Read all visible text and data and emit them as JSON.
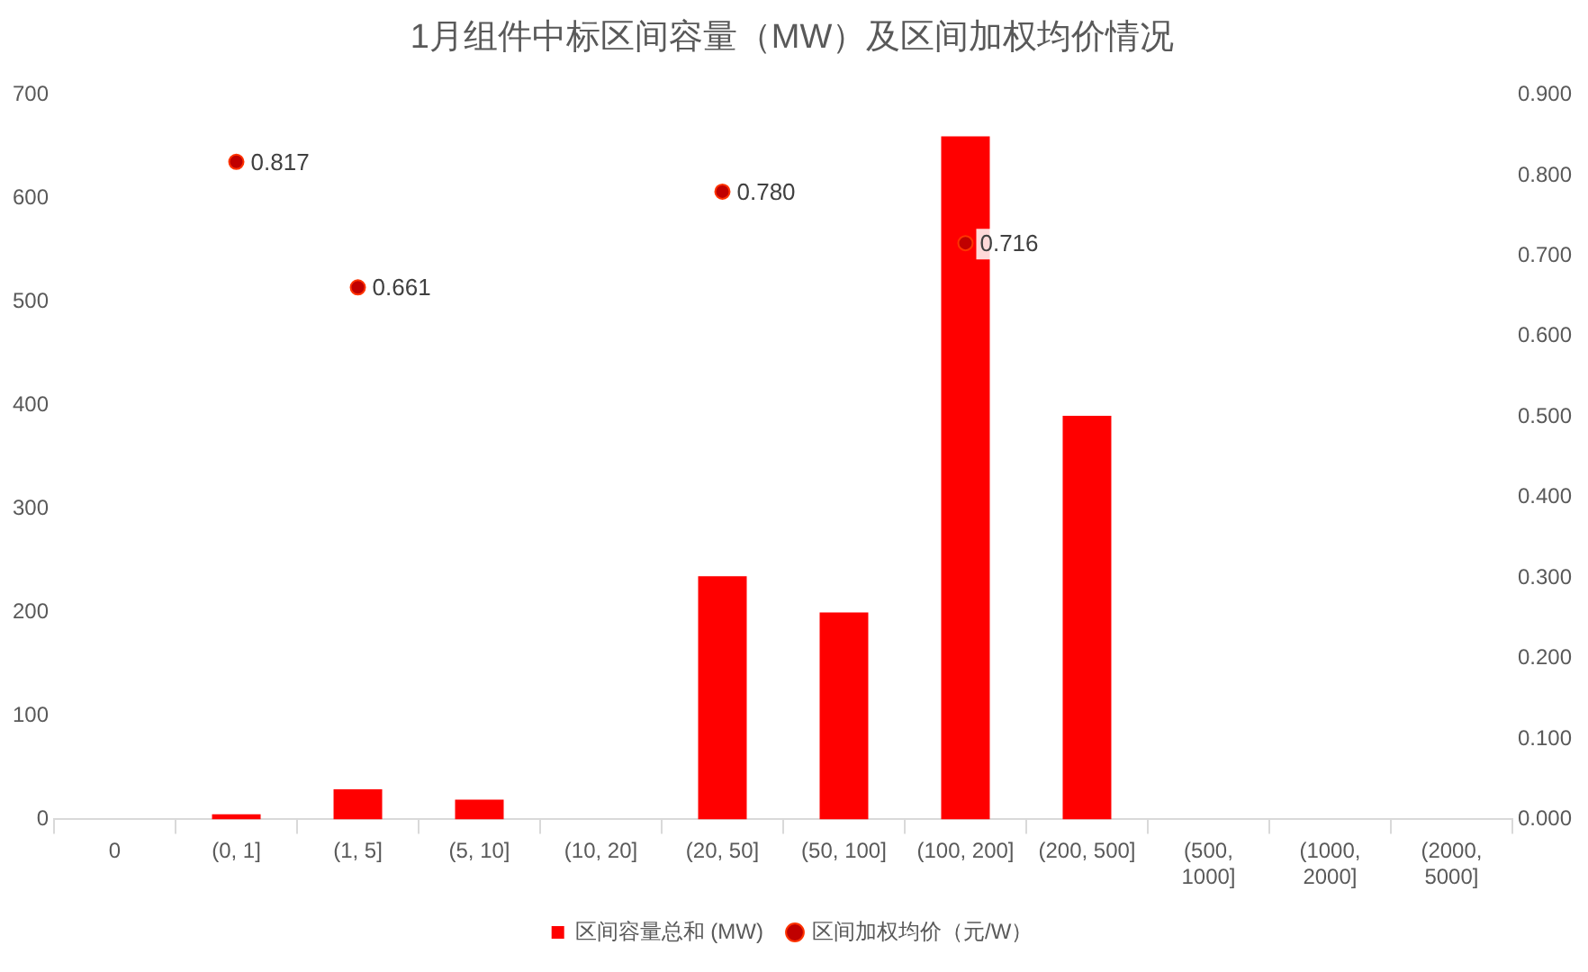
{
  "chart_data": {
    "type": "bar",
    "title": "1月组件中标区间容量（MW）及区间加权均价情况",
    "categories": [
      "0",
      "(0, 1]",
      "(1, 5]",
      "(5, 10]",
      "(10, 20]",
      "(20, 50]",
      "(50, 100]",
      "(100, 200]",
      "(200, 500]",
      "(500, 1000]",
      "(1000, 2000]",
      "(2000, 5000]"
    ],
    "series": [
      {
        "name": "区间容量总和 (MW)",
        "type": "bar",
        "color": "#ff0000",
        "values": [
          0,
          5,
          29,
          19,
          0,
          235,
          200,
          660,
          390,
          0,
          0,
          0
        ]
      },
      {
        "name": "区间加权均价（元/W）",
        "type": "scatter",
        "axis": "y2",
        "color": "#c00000",
        "marker": "circle",
        "values": [
          null,
          0.817,
          0.661,
          null,
          null,
          0.78,
          null,
          0.716,
          null,
          null,
          null,
          null
        ],
        "value_labels": [
          null,
          "0.817",
          "0.661",
          null,
          null,
          "0.780",
          null,
          "0.716",
          null,
          null,
          null,
          null
        ]
      }
    ],
    "ylim": [
      0,
      700
    ],
    "yticks": [
      0,
      100,
      200,
      300,
      400,
      500,
      600,
      700
    ],
    "y2lim": [
      0,
      0.9
    ],
    "y2ticks": [
      {
        "value": 0,
        "label": "0.000"
      },
      {
        "value": 0.1,
        "label": "0.100"
      },
      {
        "value": 0.2,
        "label": "0.200"
      },
      {
        "value": 0.3,
        "label": "0.300"
      },
      {
        "value": 0.4,
        "label": "0.400"
      },
      {
        "value": 0.5,
        "label": "0.500"
      },
      {
        "value": 0.6,
        "label": "0.600"
      },
      {
        "value": 0.7,
        "label": "0.700"
      },
      {
        "value": 0.8,
        "label": "0.800"
      },
      {
        "value": 0.9,
        "label": "0.900"
      }
    ],
    "grid": false,
    "legend": "bottom"
  }
}
